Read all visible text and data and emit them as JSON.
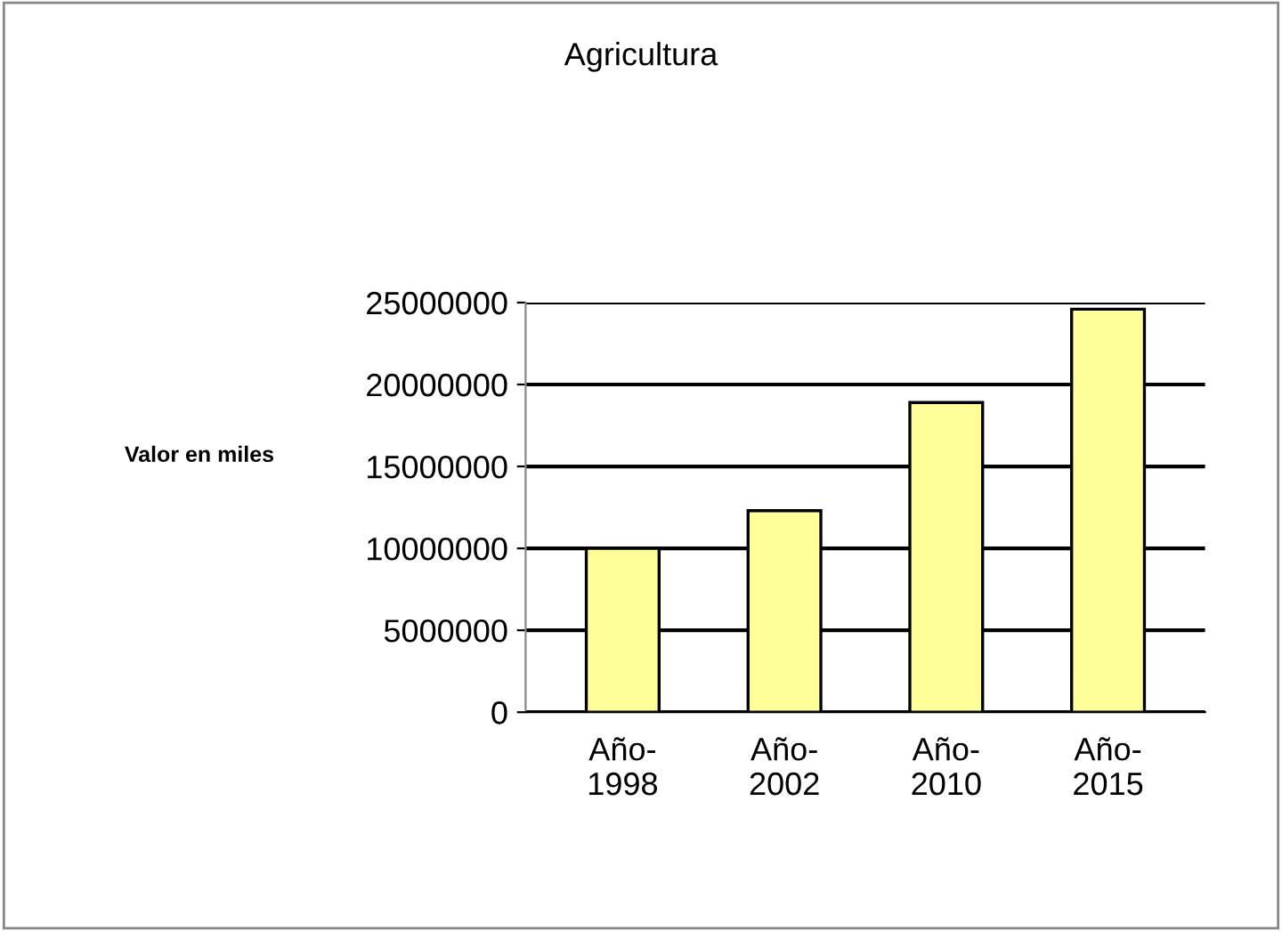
{
  "chart_data": {
    "type": "bar",
    "title": "Agricultura",
    "ylabel": "Valor en miles",
    "categories": [
      "Año-\n1998",
      "Año-\n2002",
      "Año-\n2010",
      "Año-\n2015"
    ],
    "values": [
      10000000,
      12300000,
      18900000,
      24600000
    ],
    "color": "#ffff99",
    "ylim": [
      0,
      25000000
    ],
    "yticks": [
      0,
      5000000,
      10000000,
      15000000,
      20000000,
      25000000
    ],
    "grid": "y"
  }
}
